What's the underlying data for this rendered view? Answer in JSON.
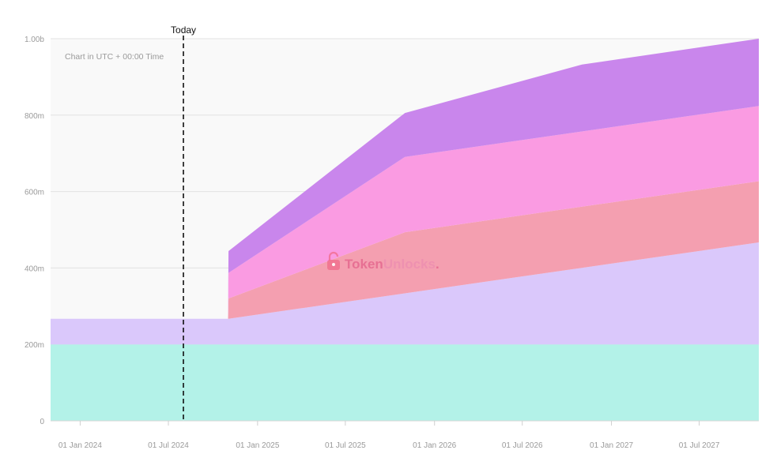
{
  "chart_data": {
    "type": "area",
    "stacked": true,
    "title": "",
    "xlabel": "",
    "ylabel": "",
    "note": "Chart in UTC + 00:00 Time",
    "watermark": {
      "prefix": "Token",
      "suffix": "Unlocks",
      "dot": "."
    },
    "today_label": "Today",
    "today_date": "2024-08-01",
    "x_range": [
      "2023-11-01",
      "2027-11-01"
    ],
    "ylim": [
      0,
      1000
    ],
    "y_unit": "m",
    "y_ticks": [
      {
        "value": 0,
        "label": "0"
      },
      {
        "value": 200,
        "label": "200m"
      },
      {
        "value": 400,
        "label": "400m"
      },
      {
        "value": 600,
        "label": "600m"
      },
      {
        "value": 800,
        "label": "800m"
      },
      {
        "value": 1000,
        "label": "1.00b"
      }
    ],
    "x_ticks": [
      {
        "date": "2024-01-01",
        "label": "01 Jan 2024"
      },
      {
        "date": "2024-07-01",
        "label": "01 Jul 2024"
      },
      {
        "date": "2025-01-01",
        "label": "01 Jan 2025"
      },
      {
        "date": "2025-07-01",
        "label": "01 Jul 2025"
      },
      {
        "date": "2026-01-01",
        "label": "01 Jan 2026"
      },
      {
        "date": "2026-07-01",
        "label": "01 Jul 2026"
      },
      {
        "date": "2027-01-01",
        "label": "01 Jan 2027"
      },
      {
        "date": "2027-07-01",
        "label": "01 Jul 2027"
      }
    ],
    "grid": true,
    "legend": "none",
    "series": [
      {
        "color": "#b3f2e8",
        "points": [
          [
            "2023-11-01",
            200
          ],
          [
            "2027-11-01",
            200
          ]
        ]
      },
      {
        "color": "#dac8fb",
        "points": [
          [
            "2023-11-01",
            67
          ],
          [
            "2024-11-01",
            67
          ],
          [
            "2027-11-01",
            267
          ]
        ]
      },
      {
        "color": "#f49fb0",
        "points": [
          [
            "2024-11-01",
            0
          ],
          [
            "2024-11-02",
            53
          ],
          [
            "2025-11-01",
            160
          ],
          [
            "2026-11-01",
            160
          ],
          [
            "2027-11-01",
            160
          ]
        ]
      },
      {
        "color": "#fa9be2",
        "points": [
          [
            "2024-11-01",
            0
          ],
          [
            "2024-11-02",
            67
          ],
          [
            "2025-11-01",
            197
          ],
          [
            "2026-11-01",
            197
          ],
          [
            "2027-11-01",
            197
          ]
        ]
      },
      {
        "color": "#c986ec",
        "points": [
          [
            "2024-11-01",
            0
          ],
          [
            "2024-11-02",
            57
          ],
          [
            "2025-11-01",
            115
          ],
          [
            "2026-11-01",
            175
          ],
          [
            "2027-11-01",
            176
          ]
        ]
      }
    ]
  }
}
